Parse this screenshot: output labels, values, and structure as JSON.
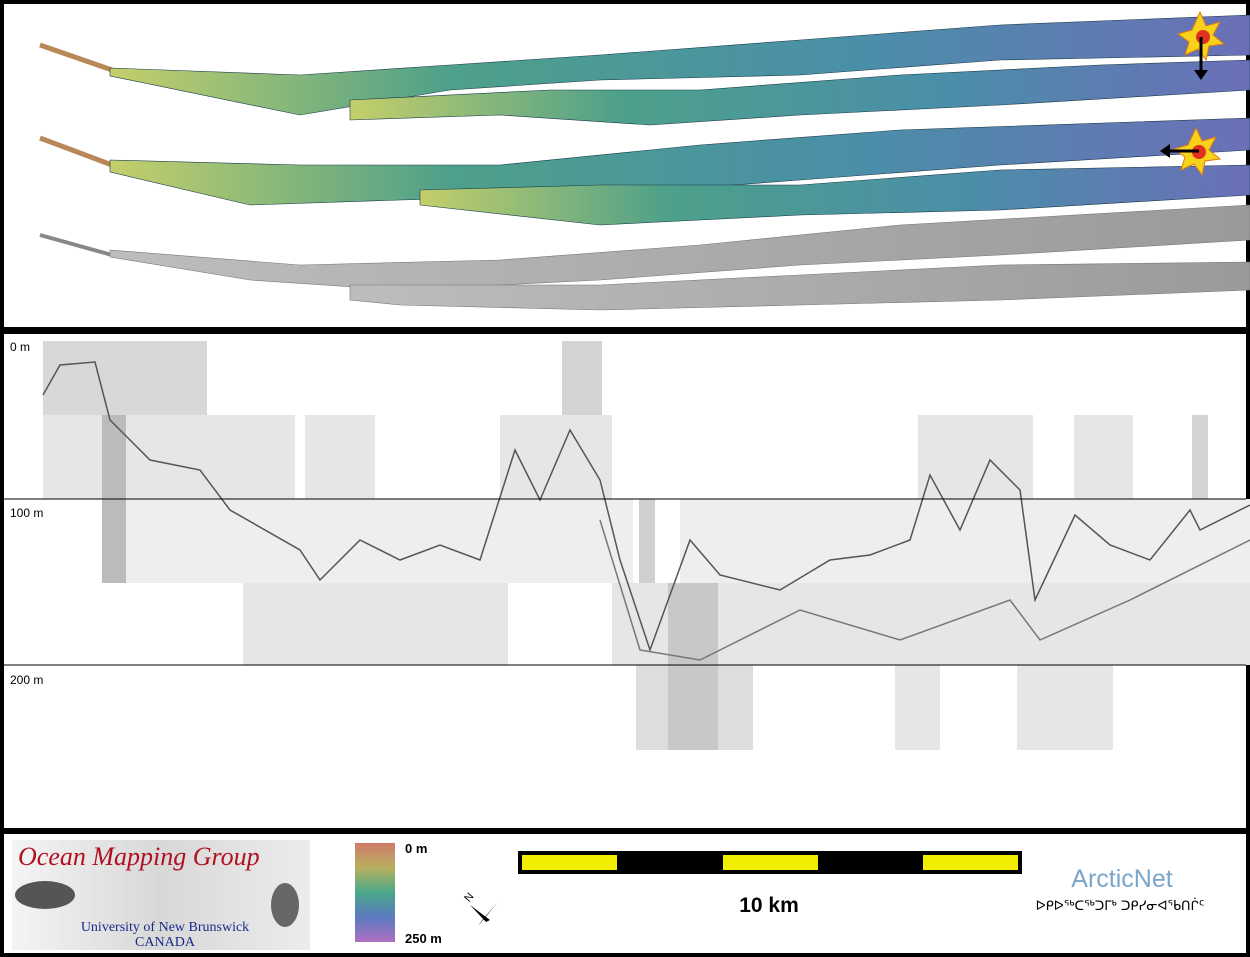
{
  "profile": {
    "depth_labels": [
      "0 m",
      "100 m",
      "200 m"
    ]
  },
  "footer": {
    "logo": {
      "title": "Ocean Mapping Group",
      "university": "University of New Brunswick",
      "country": "CANADA"
    },
    "colorbar": {
      "top": "0 m",
      "bottom": "250 m"
    },
    "scale_bar": "10 km",
    "compass": "N",
    "partner": {
      "name": "ArcticNet",
      "subtitle": "ᐅᑭᐅᖅᑕᖅᑐᒥᒃ ᑐᑭᓯᓂᐊᖃᑎᒌᑦ"
    }
  }
}
